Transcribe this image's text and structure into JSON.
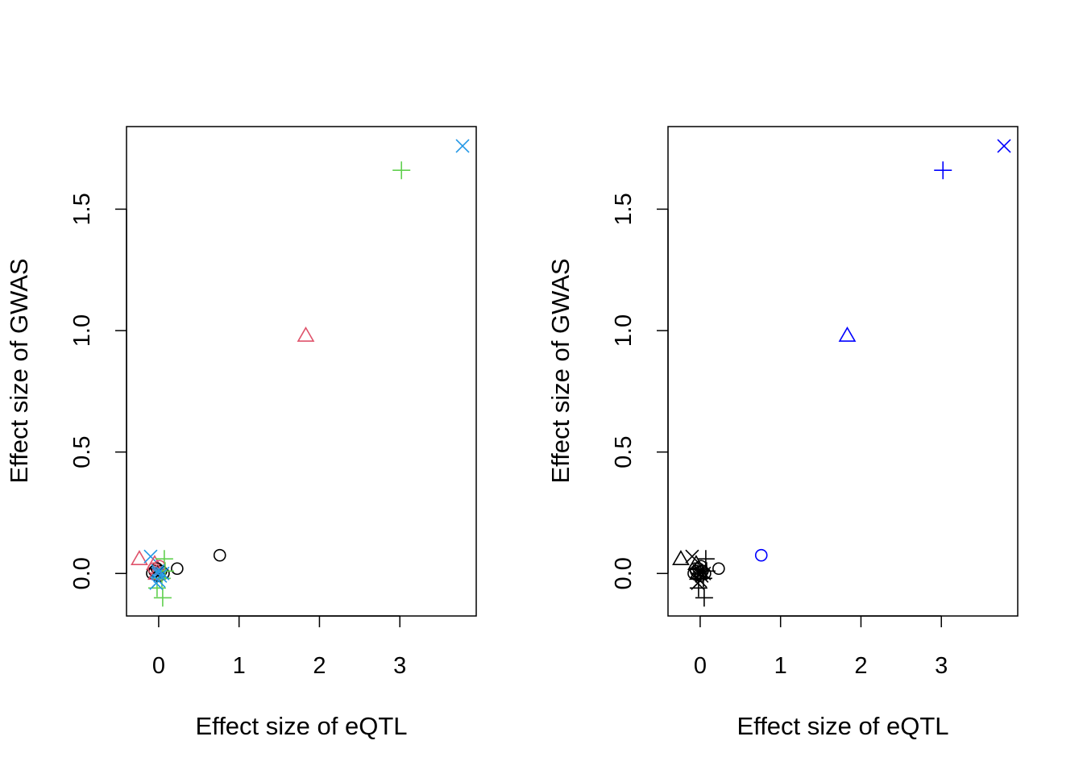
{
  "chart_data": [
    {
      "type": "scatter",
      "xlabel": "Effect size of eQTL",
      "ylabel": "Effect size of GWAS",
      "xlim": [
        -0.4,
        3.95
      ],
      "ylim": [
        -0.175,
        1.84
      ],
      "x_ticks": [
        0,
        1,
        2,
        3
      ],
      "x_tick_labels": [
        "0",
        "1",
        "2",
        "3"
      ],
      "y_ticks": [
        0.0,
        0.5,
        1.0,
        1.5
      ],
      "y_tick_labels": [
        "0.0",
        "0.5",
        "1.0",
        "1.5"
      ],
      "colors": {
        "black": "#000000",
        "red": "#DF536B",
        "green": "#61D04F",
        "blue": "#2297E6"
      },
      "points": [
        {
          "x": 3.78,
          "y": 1.76,
          "shape": "x",
          "color": "blue"
        },
        {
          "x": 3.02,
          "y": 1.66,
          "shape": "plus",
          "color": "green"
        },
        {
          "x": 1.83,
          "y": 0.98,
          "shape": "triangle",
          "color": "red"
        },
        {
          "x": 0.76,
          "y": 0.075,
          "shape": "circle",
          "color": "black"
        },
        {
          "x": 0.23,
          "y": 0.02,
          "shape": "circle",
          "color": "black"
        },
        {
          "x": -0.24,
          "y": 0.06,
          "shape": "triangle",
          "color": "red"
        },
        {
          "x": -0.1,
          "y": 0.07,
          "shape": "x",
          "color": "blue"
        },
        {
          "x": -0.05,
          "y": 0.04,
          "shape": "triangle",
          "color": "red"
        },
        {
          "x": 0.07,
          "y": 0.06,
          "shape": "plus",
          "color": "green"
        },
        {
          "x": 0.05,
          "y": -0.1,
          "shape": "plus",
          "color": "green"
        },
        {
          "x": -0.02,
          "y": -0.06,
          "shape": "plus",
          "color": "green"
        },
        {
          "x": -0.03,
          "y": -0.04,
          "shape": "x",
          "color": "blue"
        },
        {
          "x": -0.08,
          "y": 0.0,
          "shape": "circle",
          "color": "black"
        },
        {
          "x": -0.05,
          "y": 0.01,
          "shape": "circle",
          "color": "black"
        },
        {
          "x": -0.02,
          "y": 0.02,
          "shape": "circle",
          "color": "black"
        },
        {
          "x": 0.0,
          "y": -0.01,
          "shape": "circle",
          "color": "black"
        },
        {
          "x": 0.03,
          "y": 0.01,
          "shape": "circle",
          "color": "black"
        },
        {
          "x": 0.06,
          "y": 0.0,
          "shape": "circle",
          "color": "black"
        },
        {
          "x": -0.06,
          "y": 0.02,
          "shape": "circle",
          "color": "red"
        },
        {
          "x": 0.01,
          "y": 0.03,
          "shape": "circle",
          "color": "red"
        },
        {
          "x": -0.03,
          "y": 0.0,
          "shape": "triangle",
          "color": "red"
        },
        {
          "x": 0.08,
          "y": 0.01,
          "shape": "plus",
          "color": "green"
        },
        {
          "x": 0.04,
          "y": -0.02,
          "shape": "plus",
          "color": "green"
        },
        {
          "x": -0.01,
          "y": 0.0,
          "shape": "x",
          "color": "blue"
        },
        {
          "x": 0.02,
          "y": -0.01,
          "shape": "x",
          "color": "blue"
        },
        {
          "x": 0.0,
          "y": -0.03,
          "shape": "x",
          "color": "blue"
        },
        {
          "x": 0.05,
          "y": 0.0,
          "shape": "x",
          "color": "blue"
        },
        {
          "x": -0.01,
          "y": 0.01,
          "shape": "x",
          "color": "blue"
        }
      ]
    },
    {
      "type": "scatter",
      "xlabel": "Effect size of eQTL",
      "ylabel": "Effect size of GWAS",
      "xlim": [
        -0.4,
        3.95
      ],
      "ylim": [
        -0.175,
        1.84
      ],
      "x_ticks": [
        0,
        1,
        2,
        3
      ],
      "x_tick_labels": [
        "0",
        "1",
        "2",
        "3"
      ],
      "y_ticks": [
        0.0,
        0.5,
        1.0,
        1.5
      ],
      "y_tick_labels": [
        "0.0",
        "0.5",
        "1.0",
        "1.5"
      ],
      "colors": {
        "black": "#000000",
        "blue": "#0000FF"
      },
      "points": [
        {
          "x": 3.78,
          "y": 1.76,
          "shape": "x",
          "color": "blue"
        },
        {
          "x": 3.02,
          "y": 1.66,
          "shape": "plus",
          "color": "blue"
        },
        {
          "x": 1.83,
          "y": 0.98,
          "shape": "triangle",
          "color": "blue"
        },
        {
          "x": 0.76,
          "y": 0.075,
          "shape": "circle",
          "color": "blue"
        },
        {
          "x": 0.23,
          "y": 0.02,
          "shape": "circle",
          "color": "black"
        },
        {
          "x": -0.24,
          "y": 0.06,
          "shape": "triangle",
          "color": "black"
        },
        {
          "x": -0.1,
          "y": 0.07,
          "shape": "x",
          "color": "black"
        },
        {
          "x": -0.05,
          "y": 0.04,
          "shape": "triangle",
          "color": "black"
        },
        {
          "x": 0.07,
          "y": 0.06,
          "shape": "plus",
          "color": "black"
        },
        {
          "x": 0.05,
          "y": -0.1,
          "shape": "plus",
          "color": "black"
        },
        {
          "x": -0.02,
          "y": -0.06,
          "shape": "plus",
          "color": "black"
        },
        {
          "x": -0.03,
          "y": -0.04,
          "shape": "x",
          "color": "black"
        },
        {
          "x": -0.08,
          "y": 0.0,
          "shape": "circle",
          "color": "black"
        },
        {
          "x": -0.05,
          "y": 0.01,
          "shape": "circle",
          "color": "black"
        },
        {
          "x": -0.02,
          "y": 0.02,
          "shape": "circle",
          "color": "black"
        },
        {
          "x": 0.0,
          "y": -0.01,
          "shape": "circle",
          "color": "black"
        },
        {
          "x": 0.03,
          "y": 0.01,
          "shape": "circle",
          "color": "black"
        },
        {
          "x": 0.06,
          "y": 0.0,
          "shape": "circle",
          "color": "black"
        },
        {
          "x": -0.06,
          "y": 0.02,
          "shape": "circle",
          "color": "black"
        },
        {
          "x": 0.01,
          "y": 0.03,
          "shape": "circle",
          "color": "black"
        },
        {
          "x": -0.03,
          "y": 0.0,
          "shape": "triangle",
          "color": "black"
        },
        {
          "x": 0.08,
          "y": 0.01,
          "shape": "plus",
          "color": "black"
        },
        {
          "x": 0.04,
          "y": -0.02,
          "shape": "plus",
          "color": "black"
        },
        {
          "x": -0.01,
          "y": 0.0,
          "shape": "x",
          "color": "black"
        },
        {
          "x": 0.02,
          "y": -0.01,
          "shape": "x",
          "color": "black"
        },
        {
          "x": 0.0,
          "y": -0.03,
          "shape": "x",
          "color": "black"
        },
        {
          "x": 0.05,
          "y": 0.0,
          "shape": "x",
          "color": "black"
        },
        {
          "x": -0.01,
          "y": 0.01,
          "shape": "x",
          "color": "black"
        }
      ]
    }
  ]
}
